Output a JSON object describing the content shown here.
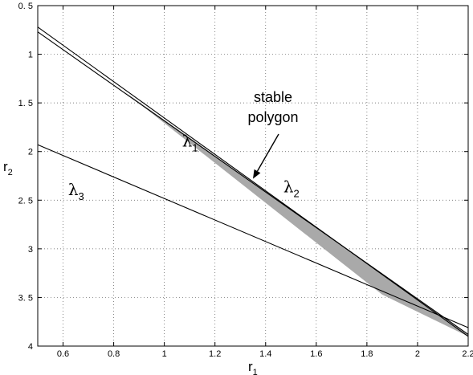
{
  "chart_data": {
    "type": "line",
    "title": "",
    "xlabel": "r",
    "xlabel_sub": "1",
    "ylabel": "r",
    "ylabel_sub": "2",
    "xlim": [
      0.5,
      2.2
    ],
    "ylim": [
      0.5,
      4
    ],
    "y_inverted": true,
    "grid": true,
    "grid_style": "dotted",
    "x_ticks": [
      0.6,
      0.8,
      1,
      1.2,
      1.4,
      1.6,
      1.8,
      2,
      2.2
    ],
    "x_tick_labels": [
      "0.6",
      "0.8",
      "1",
      "1.2",
      "1.4",
      "1.6",
      "1.8",
      "2",
      "2.2"
    ],
    "y_ticks": [
      0.5,
      1,
      1.5,
      2,
      2.5,
      3,
      3.5,
      4
    ],
    "y_tick_labels": [
      "0. 5",
      "1",
      "1. 5",
      "2",
      "2. 5",
      "3",
      "3. 5",
      "4"
    ],
    "series": [
      {
        "name": "λ1",
        "label_sub": "1",
        "x": [
          0.5,
          2.2
        ],
        "y": [
          0.72,
          3.9
        ],
        "label_at": [
          1.07,
          1.95
        ]
      },
      {
        "name": "λ2",
        "label_sub": "2",
        "x": [
          0.5,
          2.2
        ],
        "y": [
          0.77,
          3.88
        ],
        "label_at": [
          1.47,
          2.42
        ]
      },
      {
        "name": "λ3",
        "label_sub": "3",
        "x": [
          0.5,
          2.2
        ],
        "y": [
          1.93,
          3.81
        ],
        "label_at": [
          0.62,
          2.45
        ]
      }
    ],
    "shaded_region": {
      "label": "stable polygon",
      "label_lines": [
        "stable",
        "polygon"
      ],
      "fill": "#a9a9a9",
      "polygon_x": [
        0.84,
        2.2,
        2.2,
        1.86
      ],
      "polygon_y": [
        1.38,
        3.88,
        3.9,
        3.47
      ],
      "arrow_to": [
        1.35,
        2.28
      ]
    }
  }
}
